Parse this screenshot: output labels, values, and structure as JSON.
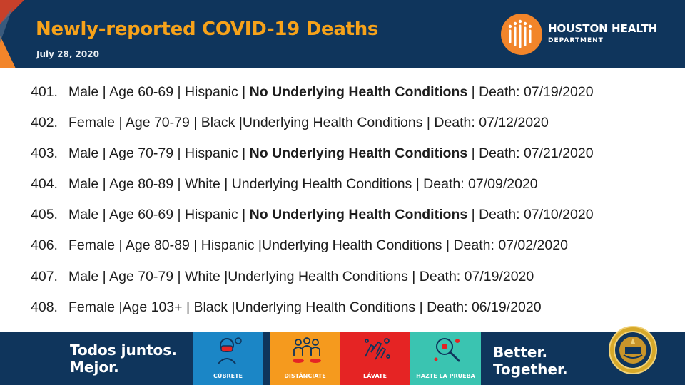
{
  "header": {
    "title": "Newly-reported COVID-19 Deaths",
    "date": "July 28, 2020",
    "logo_line1": "HOUSTON HEALTH",
    "logo_line2": "DEPARTMENT"
  },
  "deaths": [
    {
      "num": "401.",
      "text": "Male | Age 60-69  | Hispanic | ",
      "bold": "No Underlying Health Conditions",
      "tail": " | Death: 07/19/2020"
    },
    {
      "num": "402.",
      "text": "Female | Age 70-79  | Black |Underlying Health Conditions | Death: 07/12/2020",
      "bold": "",
      "tail": ""
    },
    {
      "num": "403.",
      "text": "Male | Age 70-79  | Hispanic | ",
      "bold": "No Underlying Health Conditions",
      "tail": " | Death: 07/21/2020"
    },
    {
      "num": "404.",
      "text": "Male | Age 80-89  | White |  Underlying Health Conditions |  Death: 07/09/2020",
      "bold": "",
      "tail": ""
    },
    {
      "num": "405.",
      "text": "Male | Age 60-69  | Hispanic | ",
      "bold": "No Underlying Health Conditions",
      "tail": " | Death: 07/10/2020"
    },
    {
      "num": "406.",
      "text": "Female | Age 80-89  | Hispanic |Underlying Health Conditions |  Death: 07/02/2020",
      "bold": "",
      "tail": ""
    },
    {
      "num": "407.",
      "text": "Male | Age 70-79  | White |Underlying Health Conditions | Death: 07/19/2020",
      "bold": "",
      "tail": ""
    },
    {
      "num": "408.",
      "text": "Female |Age 103+  | Black |Underlying Health Conditions | Death: 06/19/2020",
      "bold": "",
      "tail": ""
    }
  ],
  "footer": {
    "slogan_es_1": "Todos juntos.",
    "slogan_es_2": "Mejor.",
    "slogan_en_1": "Better.",
    "slogan_en_2": "Together.",
    "tiles": [
      {
        "label": "CÚBRETE",
        "color": "#1b86c6",
        "icon": "mask-icon"
      },
      {
        "label": "DISTÁNCIATE",
        "color": "#f59a1e",
        "icon": "distance-icon"
      },
      {
        "label": "LÁVATE",
        "color": "#e52424",
        "icon": "handwash-icon"
      },
      {
        "label": "HAZTE LA PRUEBA",
        "color": "#3ac4b1",
        "icon": "test-magnifier-icon"
      }
    ]
  },
  "colors": {
    "navy": "#0f355c",
    "title_orange": "#f6a21a",
    "logo_orange": "#f2852a"
  }
}
